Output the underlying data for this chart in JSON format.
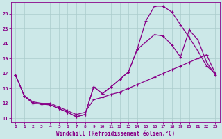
{
  "xlabel": "Windchill (Refroidissement éolien,°C)",
  "bg_color": "#cce8e8",
  "line_color": "#880088",
  "grid_color": "#aacccc",
  "xlim": [
    -0.5,
    23.5
  ],
  "ylim": [
    10.5,
    26.5
  ],
  "xticks": [
    0,
    1,
    2,
    3,
    4,
    5,
    6,
    7,
    8,
    9,
    10,
    11,
    12,
    13,
    14,
    15,
    16,
    17,
    18,
    19,
    20,
    21,
    22,
    23
  ],
  "yticks": [
    11,
    13,
    15,
    17,
    19,
    21,
    23,
    25
  ],
  "line1_x": [
    0,
    1,
    2,
    3,
    4,
    5,
    6,
    7,
    8,
    9,
    10,
    11,
    12,
    13,
    14,
    15,
    16,
    17,
    18,
    19,
    20,
    21,
    22,
    23
  ],
  "line1_y": [
    16.8,
    14.0,
    13.0,
    12.9,
    12.8,
    12.3,
    11.8,
    11.2,
    11.5,
    15.2,
    14.3,
    15.2,
    16.2,
    17.2,
    20.2,
    24.0,
    26.0,
    26.0,
    25.2,
    23.5,
    21.8,
    20.0,
    18.0,
    17.0
  ],
  "line2_x": [
    0,
    1,
    2,
    3,
    4,
    5,
    6,
    7,
    8,
    9,
    10,
    11,
    12,
    13,
    14,
    15,
    16,
    17,
    18,
    19,
    20,
    21,
    22,
    23
  ],
  "line2_y": [
    16.8,
    14.0,
    13.0,
    12.9,
    12.8,
    12.3,
    11.8,
    11.2,
    11.5,
    15.2,
    14.3,
    15.2,
    16.2,
    17.2,
    20.2,
    21.2,
    22.2,
    22.0,
    20.8,
    19.2,
    22.8,
    21.5,
    18.5,
    16.8
  ],
  "line3_x": [
    0,
    1,
    2,
    3,
    4,
    5,
    6,
    7,
    8,
    9,
    10,
    11,
    12,
    13,
    14,
    15,
    16,
    17,
    18,
    19,
    20,
    21,
    22,
    23
  ],
  "line3_y": [
    16.8,
    14.0,
    13.2,
    13.0,
    13.0,
    12.5,
    12.0,
    11.5,
    11.8,
    13.5,
    13.8,
    14.2,
    14.5,
    15.0,
    15.5,
    16.0,
    16.5,
    17.0,
    17.5,
    18.0,
    18.5,
    19.0,
    19.5,
    17.0
  ],
  "marker": "+",
  "marker_size": 3,
  "linewidth": 0.9
}
